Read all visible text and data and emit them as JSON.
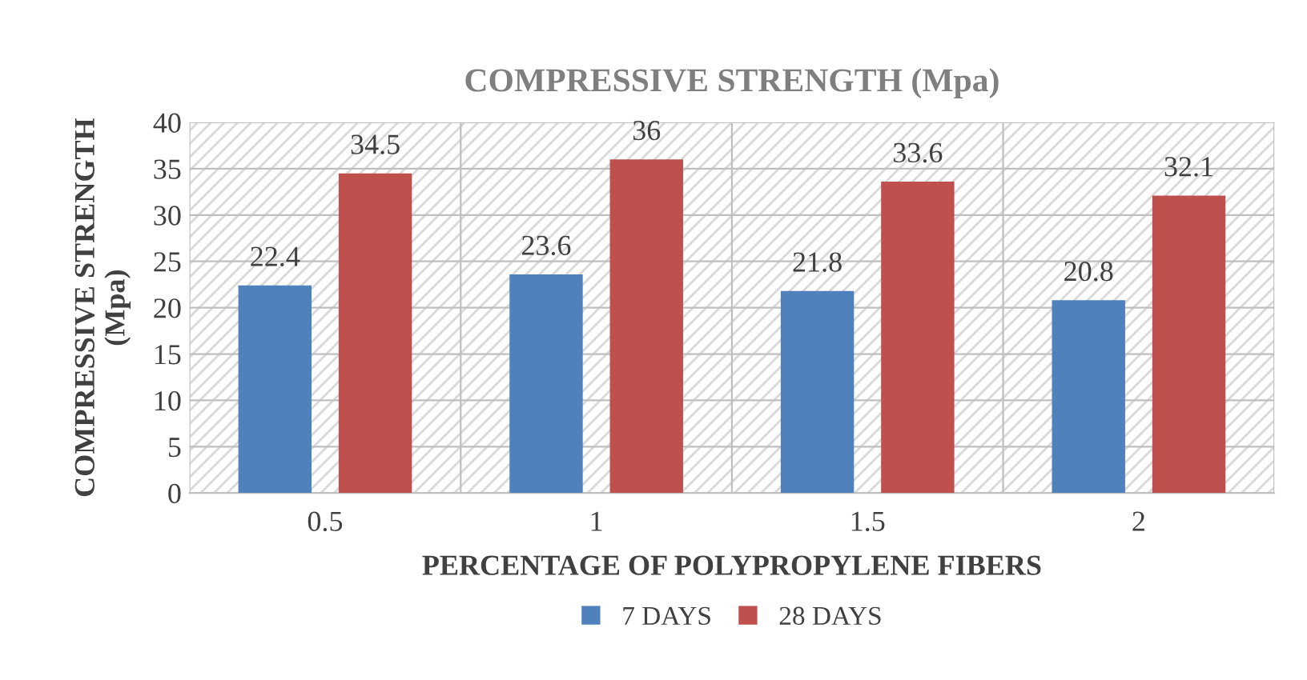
{
  "chart_data": {
    "type": "bar",
    "title": "COMPRESSIVE STRENGTH (Mpa)",
    "xlabel": "PERCENTAGE OF POLYPROPYLENE FIBERS",
    "ylabel": "COMPRESSIVE STRENGTH\n(Mpa)",
    "categories": [
      "0.5",
      "1",
      "1.5",
      "2"
    ],
    "series": [
      {
        "name": "7 DAYS",
        "color": "#4f81bd",
        "values": [
          22.4,
          23.6,
          21.8,
          20.8
        ]
      },
      {
        "name": "28 DAYS",
        "color": "#c0504d",
        "values": [
          34.5,
          36,
          33.6,
          32.1
        ]
      }
    ],
    "ylim": [
      0,
      40
    ],
    "yticks": [
      0,
      5,
      10,
      15,
      20,
      25,
      30,
      35,
      40
    ],
    "grid": true,
    "legend": "bottom",
    "data_labels": true
  }
}
